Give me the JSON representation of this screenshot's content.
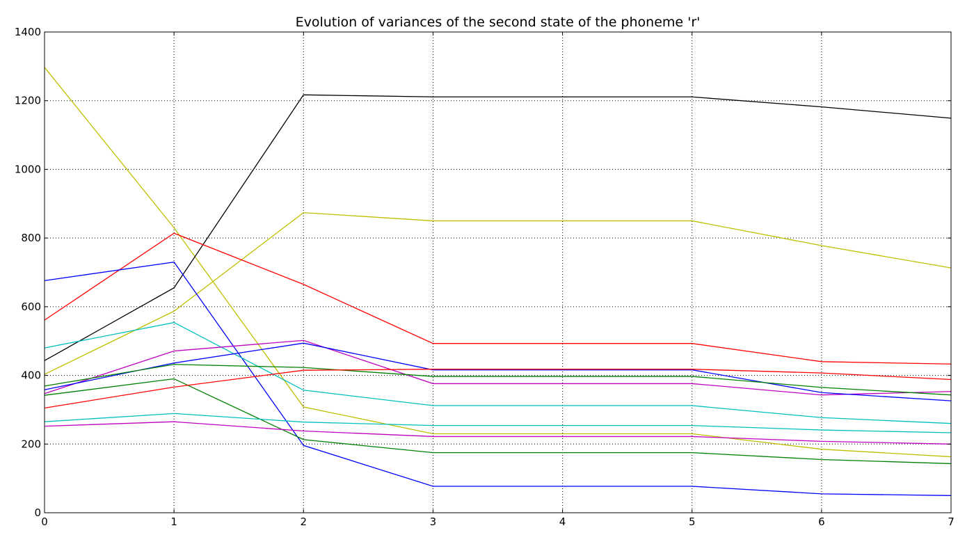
{
  "chart_data": {
    "type": "line",
    "title": "Evolution of variances of the second state of the phoneme 'r'",
    "xlabel": "",
    "ylabel": "",
    "xlim": [
      0,
      7
    ],
    "ylim": [
      0,
      1400
    ],
    "xticks": [
      0,
      1,
      2,
      3,
      4,
      5,
      6,
      7
    ],
    "yticks": [
      0,
      200,
      400,
      600,
      800,
      1000,
      1200,
      1400
    ],
    "grid": true,
    "x": [
      0,
      1,
      2,
      3,
      4,
      5,
      6,
      7
    ],
    "series": [
      {
        "color": "#bfbf00",
        "values": [
          1297,
          830,
          308,
          230,
          230,
          230,
          185,
          163
        ]
      },
      {
        "color": "#000000",
        "values": [
          443,
          655,
          1217,
          1211,
          1211,
          1211,
          1182,
          1149
        ]
      },
      {
        "color": "#bfbf00",
        "values": [
          403,
          587,
          874,
          850,
          850,
          850,
          778,
          713
        ]
      },
      {
        "color": "#ff0000",
        "values": [
          561,
          814,
          665,
          493,
          493,
          493,
          440,
          433
        ]
      },
      {
        "color": "#0000ff",
        "values": [
          676,
          730,
          196,
          77,
          77,
          77,
          55,
          50
        ]
      },
      {
        "color": "#00bfbf",
        "values": [
          480,
          554,
          357,
          312,
          312,
          312,
          277,
          260
        ]
      },
      {
        "color": "#bf00bf",
        "values": [
          347,
          471,
          502,
          376,
          376,
          376,
          343,
          353
        ]
      },
      {
        "color": "#0000ff",
        "values": [
          358,
          436,
          494,
          416,
          416,
          416,
          350,
          326
        ]
      },
      {
        "color": "#008000",
        "values": [
          369,
          432,
          423,
          397,
          397,
          397,
          365,
          343
        ]
      },
      {
        "color": "#008000",
        "values": [
          342,
          390,
          213,
          175,
          175,
          175,
          155,
          143
        ]
      },
      {
        "color": "#ff0000",
        "values": [
          305,
          366,
          415,
          418,
          418,
          418,
          407,
          388
        ]
      },
      {
        "color": "#00bfbf",
        "values": [
          265,
          289,
          264,
          254,
          254,
          254,
          241,
          233
        ]
      },
      {
        "color": "#bf00bf",
        "values": [
          252,
          265,
          238,
          222,
          222,
          222,
          208,
          200
        ]
      }
    ]
  }
}
